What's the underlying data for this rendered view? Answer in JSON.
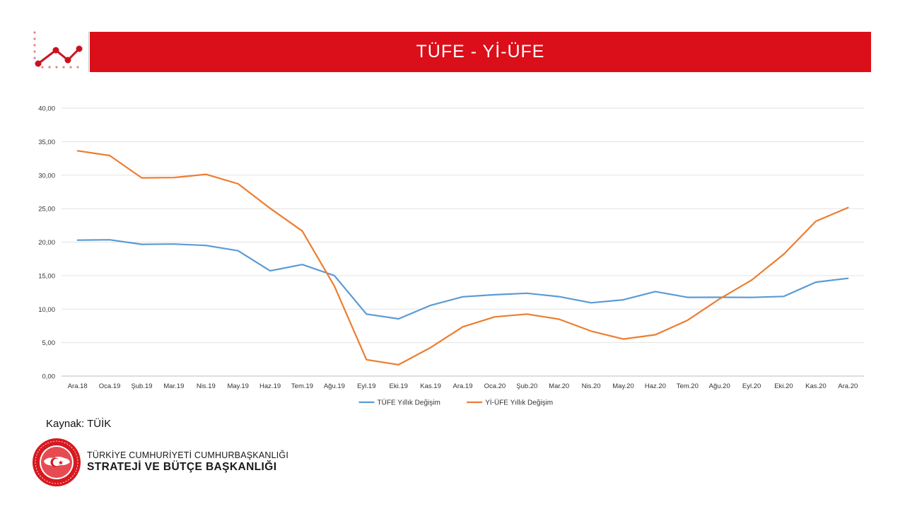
{
  "header": {
    "title": "TÜFE - Yİ-ÜFE",
    "accent_color": "#db0f1a",
    "icon": "line-chart-icon"
  },
  "chart_data": {
    "type": "line",
    "categories": [
      "Ara.18",
      "Oca.19",
      "Şub.19",
      "Mar.19",
      "Nis.19",
      "May.19",
      "Haz.19",
      "Tem.19",
      "Ağu.19",
      "Eyl.19",
      "Eki.19",
      "Kas.19",
      "Ara.19",
      "Oca.20",
      "Şub.20",
      "Mar.20",
      "Nis.20",
      "May.20",
      "Haz.20",
      "Tem.20",
      "Ağu.20",
      "Eyl.20",
      "Eki.20",
      "Kas.20",
      "Ara.20"
    ],
    "series": [
      {
        "name": "TÜFE Yıllık Değişim",
        "color": "#5b9bd5",
        "values": [
          20.3,
          20.35,
          19.67,
          19.71,
          19.5,
          18.71,
          15.72,
          16.65,
          15.01,
          9.26,
          8.55,
          10.56,
          11.84,
          12.15,
          12.37,
          11.86,
          10.94,
          11.39,
          12.62,
          11.76,
          11.77,
          11.75,
          11.89,
          14.03,
          14.6
        ]
      },
      {
        "name": "Yİ-ÜFE Yıllık Değişim",
        "color": "#ed7d31",
        "values": [
          33.64,
          32.93,
          29.59,
          29.64,
          30.12,
          28.71,
          25.04,
          21.66,
          13.45,
          2.45,
          1.7,
          4.26,
          7.36,
          8.84,
          9.26,
          8.5,
          6.71,
          5.53,
          6.17,
          8.33,
          11.53,
          14.33,
          18.2,
          23.11,
          25.15
        ]
      }
    ],
    "y_ticks": [
      "0,00",
      "5,00",
      "10,00",
      "15,00",
      "20,00",
      "25,00",
      "30,00",
      "35,00",
      "40,00"
    ],
    "ylim": [
      0,
      40
    ],
    "grid": true,
    "legend_position": "bottom"
  },
  "source": "Kaynak: TÜİK",
  "footer": {
    "logo_icon": "presidency-seal-icon",
    "org_line1": "TÜRKİYE CUMHURİYETİ CUMHURBAŞKANLIĞI",
    "org_line2": "STRATEJİ VE BÜTÇE BAŞKANLIĞI"
  }
}
